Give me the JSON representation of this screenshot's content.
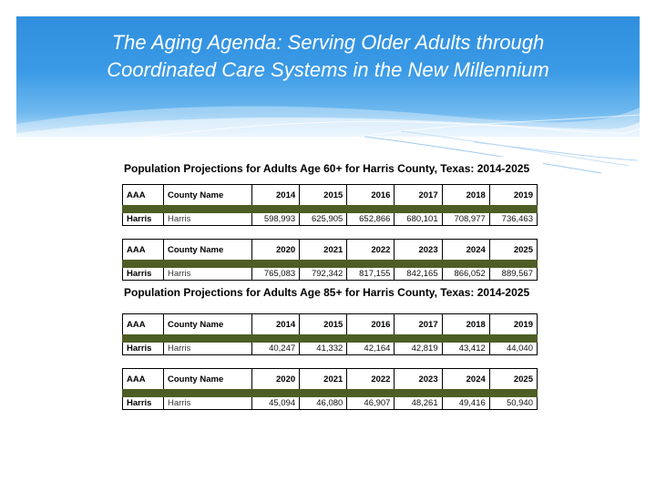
{
  "slide": {
    "title_line1": "The Aging Agenda:  Serving Older Adults through",
    "title_line2": "Coordinated Care Systems in the New Millennium"
  },
  "colors": {
    "header_blue": "#2f8fde",
    "table_bar_green": "#4d5e25"
  },
  "tables": {
    "age60": {
      "caption": "Population Projections for  Adults Age 60+ for Harris County, Texas: 2014-2025",
      "part1": {
        "headers": [
          "AAA",
          "County Name",
          "2014",
          "2015",
          "2016",
          "2017",
          "2018",
          "2019"
        ],
        "row": [
          "Harris",
          "Harris",
          "598,993",
          "625,905",
          "652,866",
          "680,101",
          "708,977",
          "736,463"
        ]
      },
      "part2": {
        "headers": [
          "AAA",
          "County Name",
          "2020",
          "2021",
          "2022",
          "2023",
          "2024",
          "2025"
        ],
        "row": [
          "Harris",
          "Harris",
          "765,083",
          "792,342",
          "817,155",
          "842,165",
          "866,052",
          "889,567"
        ]
      }
    },
    "age85": {
      "caption": "Population Projections for  Adults Age 85+ for Harris County, Texas: 2014-2025",
      "part1": {
        "headers": [
          "AAA",
          "County Name",
          "2014",
          "2015",
          "2016",
          "2017",
          "2018",
          "2019"
        ],
        "row": [
          "Harris",
          "Harris",
          "40,247",
          "41,332",
          "42,164",
          "42,819",
          "43,412",
          "44,040"
        ]
      },
      "part2": {
        "headers": [
          "AAA",
          "County Name",
          "2020",
          "2021",
          "2022",
          "2023",
          "2024",
          "2025"
        ],
        "row": [
          "Harris",
          "Harris",
          "45,094",
          "46,080",
          "46,907",
          "48,261",
          "49,416",
          "50,940"
        ]
      }
    }
  }
}
